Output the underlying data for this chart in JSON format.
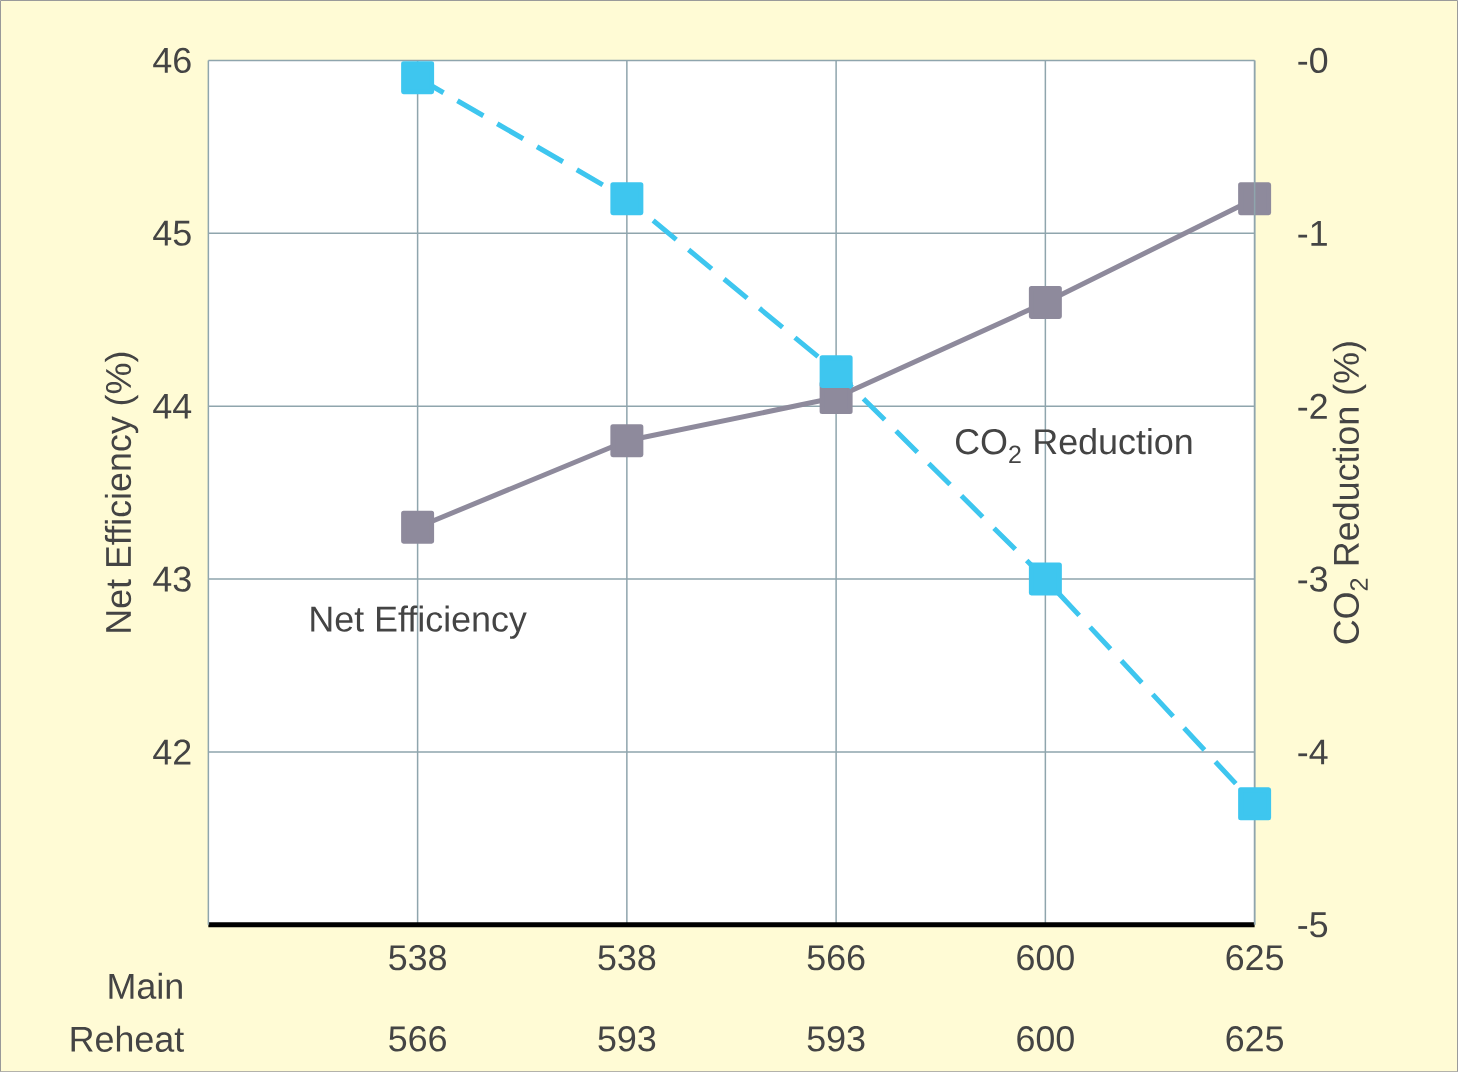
{
  "chart_data": {
    "type": "line",
    "ylabel": "Net Efficiency (%)",
    "y2label": "CO$_{2}$ Reduction (%)",
    "categories": [
      "538",
      "538",
      "566",
      "600",
      "625"
    ],
    "annotations": [
      "Main",
      "Reheat",
      "566",
      "593",
      "593",
      "600",
      "625"
    ],
    "series": [
      {
        "name": "Net Efficiency",
        "color": "#8e8a9c",
        "values": [
          43.3,
          43.8,
          44.05,
          44.6,
          45.2
        ],
        "line_style": "solid"
      },
      {
        "name": "CO$_{2}$ Reduction",
        "color": "#3ec6ef",
        "values": [
          -0.1,
          -0.8,
          -1.8,
          -3.0,
          -4.3
        ],
        "axis": "y2",
        "line_style": "dashed"
      }
    ],
    "ylim": [
      41,
      46
    ],
    "yticks": [
      42,
      43,
      44,
      45,
      46
    ],
    "y2lim": [
      -5,
      0
    ],
    "y2ticks": [
      {
        "value": 0,
        "label": "-0"
      },
      -1,
      -2,
      -3,
      -4,
      -5
    ],
    "grid": true,
    "legend": false,
    "marker": "square"
  }
}
